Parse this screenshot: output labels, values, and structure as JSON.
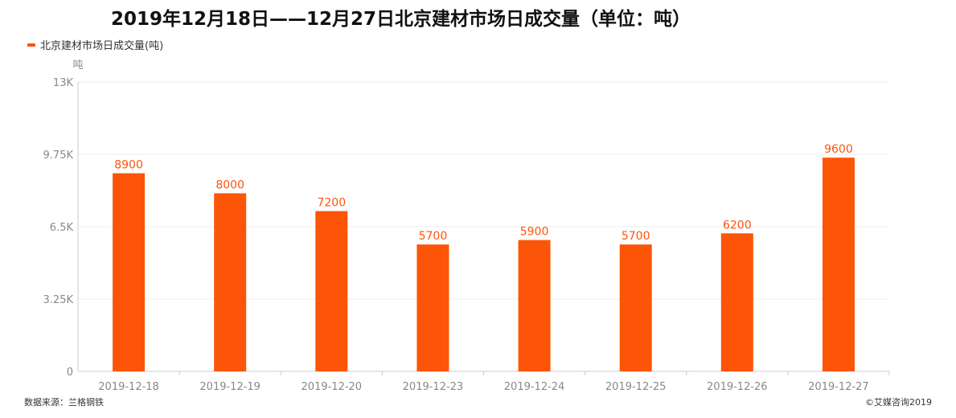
{
  "header": {
    "title": "2019年12月18日——12月27日北京建材市场日成交量（单位：吨）"
  },
  "footer": {
    "source": "数据来源：兰格钢铁",
    "copyright": "©艾媒咨询2019"
  },
  "colors": {
    "bar": "#fc5508",
    "grid": "#eeeeee",
    "axis": "#cccccc",
    "tick_text": "#888888"
  },
  "chart_data": {
    "type": "bar",
    "title": "2019年12月18日——12月27日北京建材市场日成交量（单位：吨）",
    "ylabel": "吨",
    "xlabel": "",
    "legend": {
      "position": "top-left",
      "entries": [
        "北京建材市场日成交量(吨)"
      ]
    },
    "grid": true,
    "ylim": [
      0,
      13000
    ],
    "yticks": [
      0,
      3250,
      6500,
      9750,
      13000
    ],
    "ytick_labels": [
      "0",
      "3.25K",
      "6.5K",
      "9.75K",
      "13K"
    ],
    "categories": [
      "2019-12-18",
      "2019-12-19",
      "2019-12-20",
      "2019-12-23",
      "2019-12-24",
      "2019-12-25",
      "2019-12-26",
      "2019-12-27"
    ],
    "series": [
      {
        "name": "北京建材市场日成交量(吨)",
        "values": [
          8900,
          8000,
          7200,
          5700,
          5900,
          5700,
          6200,
          9600
        ]
      }
    ]
  }
}
